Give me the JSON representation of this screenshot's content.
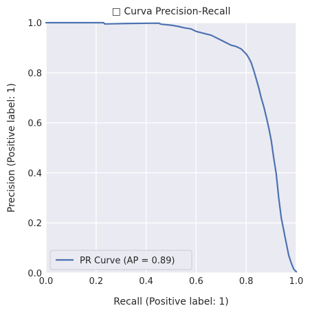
{
  "chart_data": {
    "type": "line",
    "title": "□ Curva Precision-Recall",
    "xlabel": "Recall (Positive label: 1)",
    "ylabel": "Precision (Positive label: 1)",
    "xlim": [
      0.0,
      1.0
    ],
    "ylim": [
      0.0,
      1.0
    ],
    "xticks": [
      "0.0",
      "0.2",
      "0.4",
      "0.6",
      "0.8",
      "1.0"
    ],
    "yticks": [
      "0.0",
      "0.2",
      "0.4",
      "0.6",
      "0.8",
      "1.0"
    ],
    "grid": true,
    "legend_position": "lower-left",
    "series": [
      {
        "name": "PR Curve (AP = 0.89)",
        "color": "#4c72b0",
        "x": [
          0.0,
          0.1,
          0.23,
          0.235,
          0.33,
          0.45,
          0.46,
          0.5,
          0.53,
          0.55,
          0.58,
          0.6,
          0.62,
          0.64,
          0.66,
          0.68,
          0.7,
          0.72,
          0.74,
          0.76,
          0.78,
          0.79,
          0.8,
          0.81,
          0.82,
          0.83,
          0.84,
          0.85,
          0.86,
          0.87,
          0.88,
          0.89,
          0.9,
          0.91,
          0.92,
          0.93,
          0.94,
          0.95,
          0.96,
          0.97,
          0.98,
          0.99,
          1.0
        ],
        "y": [
          1.0,
          1.0,
          1.0,
          0.995,
          0.997,
          0.998,
          0.994,
          0.99,
          0.985,
          0.98,
          0.975,
          0.965,
          0.96,
          0.955,
          0.95,
          0.94,
          0.93,
          0.92,
          0.91,
          0.905,
          0.895,
          0.885,
          0.875,
          0.86,
          0.84,
          0.81,
          0.775,
          0.74,
          0.7,
          0.665,
          0.625,
          0.58,
          0.53,
          0.46,
          0.395,
          0.3,
          0.22,
          0.17,
          0.12,
          0.07,
          0.04,
          0.015,
          0.005
        ]
      }
    ]
  }
}
